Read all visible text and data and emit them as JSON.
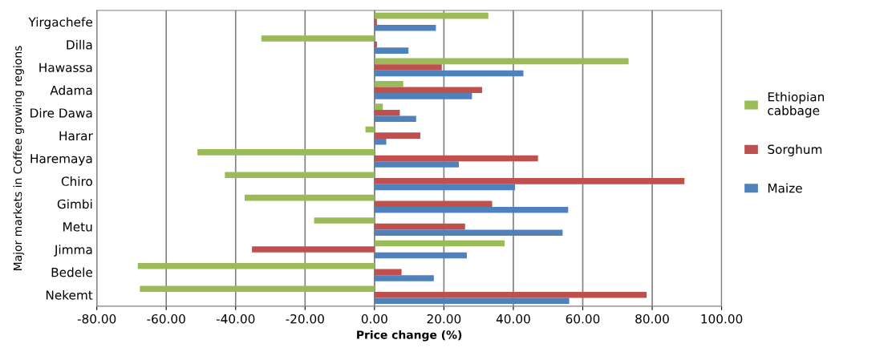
{
  "chart_data": {
    "type": "bar",
    "orientation": "horizontal",
    "xlabel": "Price change (%)",
    "ylabel": "Major markets in Coffee growing regions",
    "categories": [
      "Yirgachefe",
      "Dilla",
      "Hawassa",
      "Adama",
      "Dire Dawa",
      "Harar",
      "Haremaya",
      "Chiro",
      "Gimbi",
      "Metu",
      "Jimma",
      "Bedele",
      "Nekemt"
    ],
    "series": [
      {
        "name": "Ethiopian cabbage",
        "color": "#9bbb59",
        "values": [
          32.8,
          -32.6,
          73.2,
          8.3,
          2.4,
          -2.6,
          -51.0,
          -43.1,
          -37.4,
          -17.4,
          37.5,
          -68.2,
          -67.6
        ]
      },
      {
        "name": "Sorghum",
        "color": "#c0504d",
        "values": [
          0.7,
          0.7,
          19.4,
          31.0,
          7.3,
          13.2,
          47.1,
          89.3,
          33.9,
          26.1,
          -35.3,
          7.8,
          78.4
        ]
      },
      {
        "name": "Maize",
        "color": "#4f81bd",
        "values": [
          17.7,
          9.8,
          42.9,
          28.1,
          12.0,
          3.4,
          24.3,
          40.5,
          55.8,
          54.2,
          26.6,
          17.1,
          56.1
        ]
      }
    ],
    "xlim": [
      -80,
      100
    ],
    "xticks": [
      {
        "value": -80,
        "label": "-80.00"
      },
      {
        "value": -60,
        "label": "-60.00"
      },
      {
        "value": -40,
        "label": "-40.00"
      },
      {
        "value": -20,
        "label": "-20.00"
      },
      {
        "value": 0,
        "label": "0.00"
      },
      {
        "value": 20,
        "label": "20.00"
      },
      {
        "value": 40,
        "label": "40.00"
      },
      {
        "value": 60,
        "label": "60.00"
      },
      {
        "value": 80,
        "label": "80.00"
      },
      {
        "value": 100,
        "label": "100.00"
      }
    ],
    "grid": "x",
    "legend": "right"
  }
}
